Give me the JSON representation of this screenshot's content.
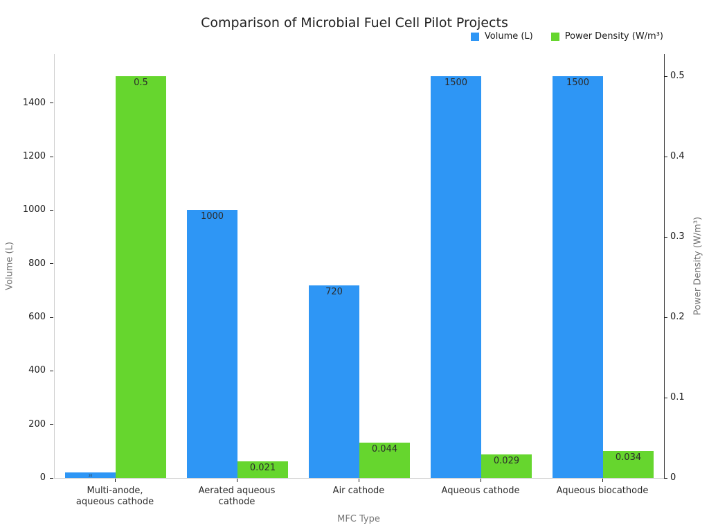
{
  "chart_data": {
    "type": "bar",
    "title": "Comparison of Microbial Fuel Cell Pilot Projects",
    "xlabel": "MFC Type",
    "ylabel_left": "Volume (L)",
    "ylabel_right": "Power Density (W/m³)",
    "categories": [
      "Multi-anode,\naqueous cathode",
      "Aerated aqueous\ncathode",
      "Air cathode",
      "Aqueous cathode",
      "Aqueous biocathode"
    ],
    "series": [
      {
        "name": "Volume (L)",
        "axis": "left",
        "color": "#2E96F5",
        "values": [
          20,
          1000,
          720,
          1500,
          1500
        ],
        "labels": [
          "20",
          "1000",
          "720",
          "1500",
          "1500"
        ]
      },
      {
        "name": "Power Density (W/m³)",
        "axis": "right",
        "color": "#66D62E",
        "values": [
          0.5,
          0.021,
          0.044,
          0.029,
          0.034
        ],
        "labels": [
          "0.5",
          "0.021",
          "0.044",
          "0.029",
          "0.034"
        ]
      }
    ],
    "left_axis": {
      "tick_labels": [
        "0",
        "200",
        "400",
        "600",
        "800",
        "1000",
        "1200",
        "1400"
      ],
      "tick_values": [
        0,
        200,
        400,
        600,
        800,
        1000,
        1200,
        1400
      ],
      "range": [
        0,
        1582.8
      ]
    },
    "right_axis": {
      "tick_labels": [
        "0",
        "0.1",
        "0.2",
        "0.3",
        "0.4",
        "0.5"
      ],
      "tick_values": [
        0,
        0.1,
        0.2,
        0.3,
        0.4,
        0.5
      ],
      "range": [
        0,
        0.5276
      ]
    },
    "grid": false,
    "legend_position": "top-right",
    "background": "#ffffff"
  }
}
